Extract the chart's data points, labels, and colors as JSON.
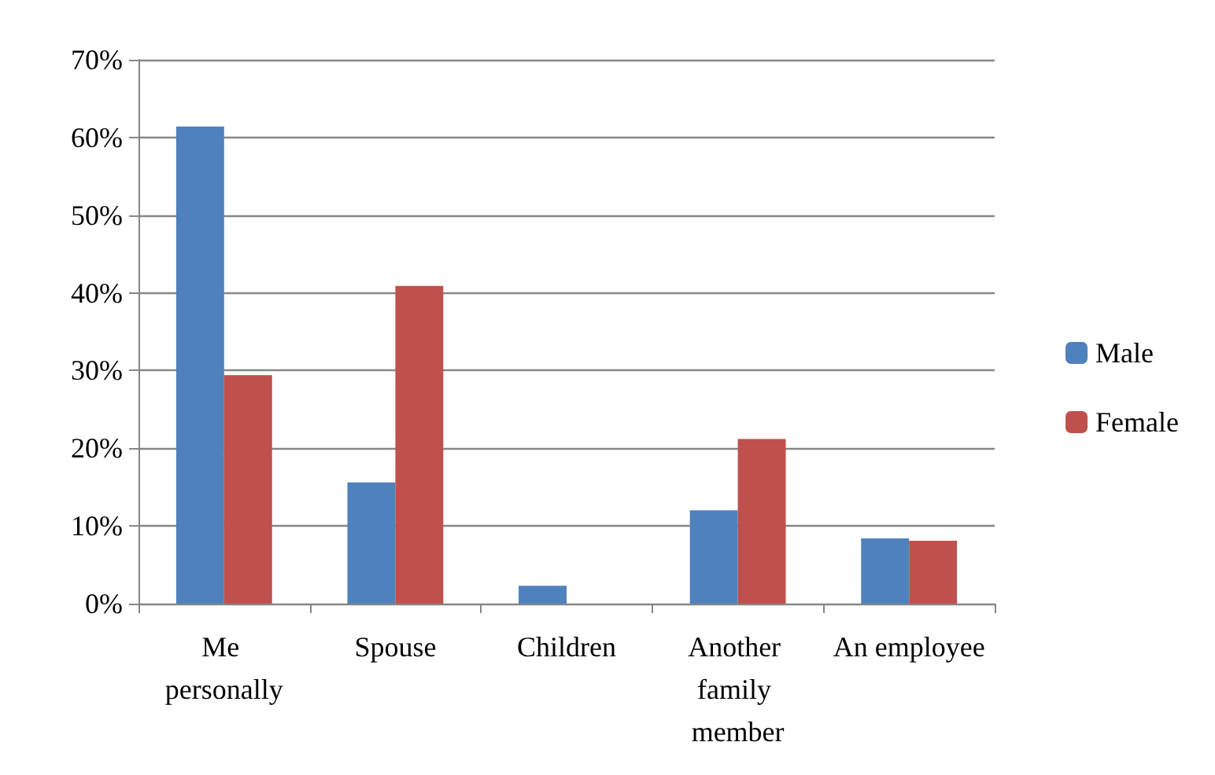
{
  "chart_data": {
    "type": "bar",
    "categories": [
      "Me personally",
      "Spouse",
      "Children",
      "Another family member",
      "An employee"
    ],
    "series": [
      {
        "name": "Male",
        "color": "#4f81bd",
        "values": [
          61.4,
          15.6,
          2.3,
          12.0,
          8.4
        ]
      },
      {
        "name": "Female",
        "color": "#c0504d",
        "values": [
          29.4,
          40.9,
          0,
          21.2,
          8.1
        ]
      }
    ],
    "ylim": [
      0,
      70
    ],
    "yticks": [
      {
        "value": 0,
        "label": "0%"
      },
      {
        "value": 10,
        "label": "10%"
      },
      {
        "value": 20,
        "label": "20%"
      },
      {
        "value": 30,
        "label": "30%"
      },
      {
        "value": 40,
        "label": "40%"
      },
      {
        "value": 50,
        "label": "50%"
      },
      {
        "value": 60,
        "label": "60%"
      },
      {
        "value": 70,
        "label": "70%"
      }
    ],
    "grid": "y",
    "legend": "right"
  }
}
